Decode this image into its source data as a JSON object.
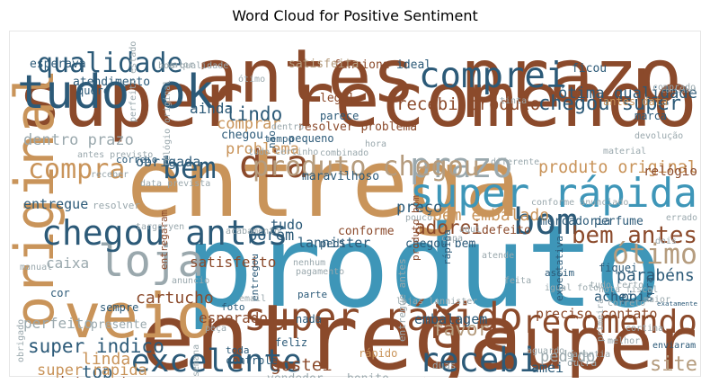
{
  "figure": {
    "title": "Word Cloud for Positive Sentiment"
  },
  "colors": {
    "brown": "#8b4a2b",
    "tan": "#c9945a",
    "blue": "#3e96b8",
    "navy": "#2c5a78",
    "grey": "#9aa8ad",
    "sand": "#b59c7e"
  },
  "chart_data": {
    "type": "wordcloud",
    "title": "Word Cloud for Positive Sentiment",
    "words": [
      {
        "text": "super recomendo",
        "weight": 1.0,
        "color": "brown"
      },
      {
        "text": "produto",
        "weight": 0.98,
        "color": "blue"
      },
      {
        "text": "entrega",
        "weight": 0.8,
        "color": "tan"
      },
      {
        "text": "entrega",
        "weight": 0.78,
        "color": "brown"
      },
      {
        "text": "super",
        "weight": 0.7,
        "color": "brown"
      },
      {
        "text": "antes prazo",
        "weight": 0.62,
        "color": "brown"
      },
      {
        "text": "veio",
        "weight": 0.52,
        "color": "tan"
      },
      {
        "text": "super rápida",
        "weight": 0.48,
        "color": "blue"
      },
      {
        "text": "original",
        "weight": 0.44,
        "color": "tan",
        "vertical": true
      },
      {
        "text": "recomendo",
        "weight": 0.42,
        "color": "brown"
      },
      {
        "text": "tudo ok",
        "weight": 0.38,
        "color": "navy"
      },
      {
        "text": "loja",
        "weight": 0.35,
        "color": "grey"
      },
      {
        "text": "ok",
        "weight": 0.34,
        "color": "brown",
        "vertical": true
      },
      {
        "text": "super rápido",
        "weight": 0.3,
        "color": "brown"
      },
      {
        "text": "dia",
        "weight": 0.3,
        "color": "brown"
      },
      {
        "text": "bom",
        "weight": 0.28,
        "color": "navy"
      },
      {
        "text": "comprei",
        "weight": 0.27,
        "color": "navy"
      },
      {
        "text": "prazo",
        "weight": 0.26,
        "color": "grey"
      },
      {
        "text": "chegou antes",
        "weight": 0.26,
        "color": "navy"
      },
      {
        "text": "recebi",
        "weight": 0.25,
        "color": "navy"
      },
      {
        "text": "excelente",
        "weight": 0.24,
        "color": "navy"
      },
      {
        "text": "ótimo",
        "weight": 0.23,
        "color": "sand"
      },
      {
        "text": "bem antes",
        "weight": 0.22,
        "color": "brown"
      },
      {
        "text": "bem",
        "weight": 0.22,
        "color": "navy"
      },
      {
        "text": "produto chegou",
        "weight": 0.2,
        "color": "sand"
      },
      {
        "text": "qualidade",
        "weight": 0.2,
        "color": "navy"
      },
      {
        "text": "compra",
        "weight": 0.2,
        "color": "tan"
      },
      {
        "text": "site",
        "weight": 0.19,
        "color": "sand"
      },
      {
        "text": "chegou super",
        "weight": 0.13,
        "color": "navy"
      },
      {
        "text": "produto original",
        "weight": 0.13,
        "color": "tan"
      },
      {
        "text": "adorei",
        "weight": 0.12,
        "color": "brown"
      },
      {
        "text": "super indico",
        "weight": 0.12,
        "color": "navy"
      },
      {
        "text": "lindo",
        "weight": 0.12,
        "color": "navy"
      },
      {
        "text": "favor",
        "weight": 0.12,
        "color": "sand"
      },
      {
        "text": "recebi produto",
        "weight": 0.11,
        "color": "brown"
      },
      {
        "text": "top",
        "weight": 0.11,
        "color": "navy"
      },
      {
        "text": "gostei",
        "weight": 0.11,
        "color": "brown"
      },
      {
        "text": "cartucho",
        "weight": 0.1,
        "color": "brown"
      },
      {
        "text": "ótima qualidade",
        "weight": 0.1,
        "color": "navy"
      },
      {
        "text": "bem embalado",
        "weight": 0.1,
        "color": "tan"
      },
      {
        "text": "relógio",
        "weight": 0.1,
        "color": "brown"
      },
      {
        "text": "parabéns",
        "weight": 0.1,
        "color": "navy"
      },
      {
        "text": "linda",
        "weight": 0.1,
        "color": "tan"
      },
      {
        "text": "porém",
        "weight": 0.09,
        "color": "navy"
      },
      {
        "text": "produto entregue",
        "weight": 0.09,
        "color": "brown"
      },
      {
        "text": "super rapida",
        "weight": 0.09,
        "color": "tan"
      },
      {
        "text": "comprar",
        "weight": 0.09,
        "color": "tan"
      },
      {
        "text": "problema",
        "weight": 0.09,
        "color": "tan"
      },
      {
        "text": "preço",
        "weight": 0.09,
        "color": "navy"
      },
      {
        "text": "dentro prazo",
        "weight": 0.09,
        "color": "grey"
      },
      {
        "text": "pedido",
        "weight": 0.09,
        "color": "grey"
      },
      {
        "text": "satisfeito",
        "weight": 0.08,
        "color": "brown"
      },
      {
        "text": "caixa",
        "weight": 0.08,
        "color": "grey"
      },
      {
        "text": "perfeito",
        "weight": 0.08,
        "color": "grey"
      },
      {
        "text": "esperado",
        "weight": 0.08,
        "color": "brown"
      },
      {
        "text": "ainda",
        "weight": 0.08,
        "color": "navy"
      },
      {
        "text": "obrigada",
        "weight": 0.07,
        "color": "navy"
      },
      {
        "text": "entregue",
        "weight": 0.07,
        "color": "navy"
      },
      {
        "text": "lannister",
        "weight": 0.07,
        "color": "navy"
      },
      {
        "text": "preciso contato",
        "weight": 0.07,
        "color": "brown"
      },
      {
        "text": "embalagem",
        "weight": 0.07,
        "color": "navy"
      },
      {
        "text": "achei",
        "weight": 0.07,
        "color": "navy"
      },
      {
        "text": "pois",
        "weight": 0.07,
        "color": "navy"
      },
      {
        "text": "tudo",
        "weight": 0.07,
        "color": "navy"
      },
      {
        "text": "amei",
        "weight": 0.07,
        "color": "navy"
      },
      {
        "text": "atendimento",
        "weight": 0.06,
        "color": "navy"
      },
      {
        "text": "legal",
        "weight": 0.06,
        "color": "brown"
      },
      {
        "text": "conforme",
        "weight": 0.06,
        "color": "brown"
      },
      {
        "text": "bonito",
        "weight": 0.06,
        "color": "grey"
      },
      {
        "text": "vendedor",
        "weight": 0.06,
        "color": "grey"
      },
      {
        "text": "presente",
        "weight": 0.06,
        "color": "grey"
      },
      {
        "text": "maravilhoso",
        "weight": 0.06,
        "color": "navy"
      },
      {
        "text": "perfume",
        "weight": 0.06,
        "color": "navy"
      },
      {
        "text": "mercadoria",
        "weight": 0.06,
        "color": "navy"
      },
      {
        "text": "defeito",
        "weight": 0.06,
        "color": "brown"
      },
      {
        "text": "chegou bem",
        "weight": 0.06,
        "color": "navy"
      },
      {
        "text": "chegou",
        "weight": 0.06,
        "color": "navy"
      },
      {
        "text": "esperava",
        "weight": 0.06,
        "color": "navy"
      },
      {
        "text": "funciona",
        "weight": 0.06,
        "color": "brown"
      },
      {
        "text": "ideal",
        "weight": 0.06,
        "color": "navy"
      },
      {
        "text": "satisfeita",
        "weight": 0.06,
        "color": "sand"
      },
      {
        "text": "resolver problema",
        "weight": 0.06,
        "color": "brown"
      },
      {
        "text": "ficou",
        "weight": 0.06,
        "color": "navy"
      },
      {
        "text": "antes data",
        "weight": 0.05,
        "color": "tan"
      },
      {
        "text": "marca",
        "weight": 0.05,
        "color": "navy"
      },
      {
        "text": "parece",
        "weight": 0.05,
        "color": "navy"
      },
      {
        "text": "quero",
        "weight": 0.05,
        "color": "navy"
      },
      {
        "text": "cor",
        "weight": 0.05,
        "color": "navy"
      },
      {
        "text": "sempre",
        "weight": 0.05,
        "color": "navy"
      },
      {
        "text": "pedi",
        "weight": 0.05,
        "color": "navy"
      },
      {
        "text": "fiquei",
        "weight": 0.05,
        "color": "navy"
      },
      {
        "text": "nada",
        "weight": 0.05,
        "color": "navy"
      },
      {
        "text": "controle",
        "weight": 0.05,
        "color": "navy"
      },
      {
        "text": "feliz",
        "weight": 0.05,
        "color": "navy"
      },
      {
        "text": "pequeno",
        "weight": 0.05,
        "color": "navy"
      },
      {
        "text": "tempo",
        "weight": 0.04,
        "color": "navy"
      },
      {
        "text": "parte",
        "weight": 0.04,
        "color": "navy"
      },
      {
        "text": "foto",
        "weight": 0.04,
        "color": "navy"
      },
      {
        "text": "rápido",
        "weight": 0.05,
        "color": "tan"
      },
      {
        "text": "toda",
        "weight": 0.04,
        "color": "navy"
      },
      {
        "text": "assim",
        "weight": 0.04,
        "color": "navy"
      },
      {
        "text": "outra",
        "weight": 0.04,
        "color": "grey"
      },
      {
        "text": "duas",
        "weight": 0.04,
        "color": "grey"
      },
      {
        "text": "resolver",
        "weight": 0.04,
        "color": "grey"
      },
      {
        "text": "correio",
        "weight": 0.04,
        "color": "navy"
      },
      {
        "text": "receber",
        "weight": 0.03,
        "color": "grey"
      },
      {
        "text": "diferente",
        "weight": 0.03,
        "color": "grey"
      },
      {
        "text": "tudo certinho",
        "weight": 0.03,
        "color": "grey"
      },
      {
        "text": "data prevista",
        "weight": 0.03,
        "color": "grey"
      },
      {
        "text": "material",
        "weight": 0.03,
        "color": "grey"
      },
      {
        "text": "manual",
        "weight": 0.03,
        "color": "grey"
      },
      {
        "text": "entregaram",
        "weight": 0.04,
        "color": "brown",
        "vertical": true
      },
      {
        "text": "rápida",
        "weight": 0.04,
        "color": "navy",
        "vertical": true
      },
      {
        "text": "entregou",
        "weight": 0.04,
        "color": "navy",
        "vertical": true
      },
      {
        "text": "expectativa",
        "weight": 0.04,
        "color": "navy",
        "vertical": true
      },
      {
        "text": "produto bom",
        "weight": 0.04,
        "color": "brown",
        "vertical": true
      },
      {
        "text": "entregue antes",
        "weight": 0.04,
        "color": "grey",
        "vertical": true
      },
      {
        "text": "não",
        "weight": 0.04,
        "color": "navy",
        "vertical": true
      },
      {
        "text": "pra",
        "weight": 0.04,
        "color": "navy",
        "vertical": true
      },
      {
        "text": "exatamente",
        "weight": 0.03,
        "color": "navy"
      },
      {
        "text": "enviaram",
        "weight": 0.03,
        "color": "navy"
      },
      {
        "text": "aguardo",
        "weight": 0.03,
        "color": "grey"
      },
      {
        "text": "comprado",
        "weight": 0.03,
        "color": "grey"
      },
      {
        "text": "devolução",
        "weight": 0.03,
        "color": "grey"
      },
      {
        "text": "boa qualidade",
        "weight": 0.03,
        "color": "grey"
      },
      {
        "text": "conforme anunciado",
        "weight": 0.03,
        "color": "grey"
      },
      {
        "text": "combinado",
        "weight": 0.03,
        "color": "grey"
      },
      {
        "text": "pagamento",
        "weight": 0.03,
        "color": "grey"
      },
      {
        "text": "nota fiscal",
        "weight": 0.03,
        "color": "grey"
      },
      {
        "text": "igual foto",
        "weight": 0.03,
        "color": "grey"
      },
      {
        "text": "tudo certo",
        "weight": 0.03,
        "color": "grey"
      },
      {
        "text": "targaryen",
        "weight": 0.03,
        "color": "grey"
      },
      {
        "text": "tamanho",
        "weight": 0.03,
        "color": "grey"
      },
      {
        "text": "funcionando",
        "weight": 0.03,
        "color": "grey"
      },
      {
        "text": "antes previsto",
        "weight": 0.03,
        "color": "grey"
      },
      {
        "text": "obrigado",
        "weight": 0.03,
        "color": "grey",
        "vertical": true
      },
      {
        "text": "relógio original",
        "weight": 0.03,
        "color": "grey",
        "vertical": true
      },
      {
        "text": "perfeito estado",
        "weight": 0.03,
        "color": "grey",
        "vertical": true
      },
      {
        "text": "semana",
        "weight": 0.03,
        "color": "grey",
        "vertical": true
      },
      {
        "text": "lojas lannister",
        "weight": 0.03,
        "color": "grey"
      },
      {
        "text": "correto",
        "weight": 0.03,
        "color": "grey"
      },
      {
        "text": "primeira",
        "weight": 0.03,
        "color": "grey",
        "vertical": true
      },
      {
        "text": "cortina",
        "weight": 0.03,
        "color": "grey"
      },
      {
        "text": "melhor",
        "weight": 0.03,
        "color": "grey"
      },
      {
        "text": "garantia",
        "weight": 0.03,
        "color": "grey"
      },
      {
        "text": "acabamento",
        "weight": 0.03,
        "color": "grey"
      },
      {
        "text": "confiável",
        "weight": 0.03,
        "color": "grey"
      },
      {
        "text": "email",
        "weight": 0.03,
        "color": "grey"
      },
      {
        "text": "maior",
        "weight": 0.03,
        "color": "grey"
      },
      {
        "text": "errado",
        "weight": 0.03,
        "color": "grey"
      },
      {
        "text": "capa",
        "weight": 0.03,
        "color": "grey"
      },
      {
        "text": "atende",
        "weight": 0.03,
        "color": "grey"
      },
      {
        "text": "tinta",
        "weight": 0.03,
        "color": "grey"
      },
      {
        "text": "hora",
        "weight": 0.03,
        "color": "grey"
      },
      {
        "text": "pouco",
        "weight": 0.03,
        "color": "grey"
      },
      {
        "text": "dois",
        "weight": 0.03,
        "color": "grey"
      },
      {
        "text": "feita",
        "weight": 0.03,
        "color": "grey"
      },
      {
        "text": "aqui",
        "weight": 0.03,
        "color": "grey"
      },
      {
        "text": "nenhum",
        "weight": 0.03,
        "color": "grey"
      },
      {
        "text": "valor",
        "weight": 0.03,
        "color": "grey"
      },
      {
        "text": "anuncio",
        "weight": 0.03,
        "color": "grey"
      },
      {
        "text": "peça",
        "weight": 0.03,
        "color": "grey"
      },
      {
        "text": "ótimo",
        "weight": 0.03,
        "color": "grey"
      },
      {
        "text": "dentro",
        "weight": 0.03,
        "color": "grey"
      }
    ]
  }
}
